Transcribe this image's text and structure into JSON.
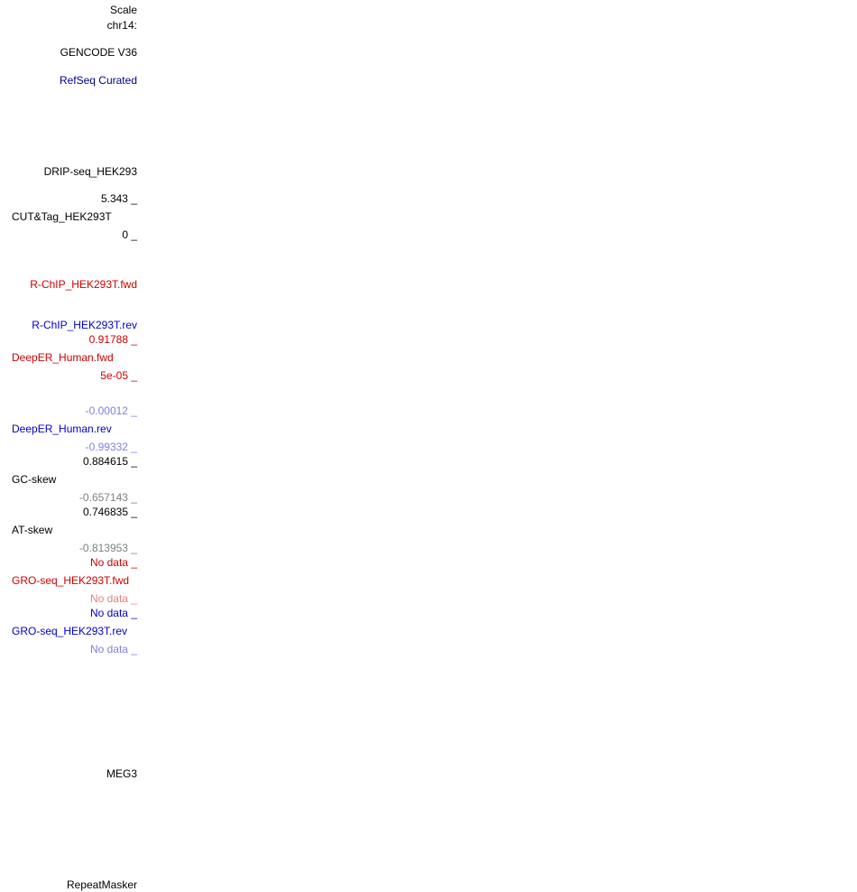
{
  "ruler": {
    "scale_label": "Scale",
    "chrom_label": "chr14:"
  },
  "tracks": {
    "gencode": {
      "label": "GENCODE V36"
    },
    "refseq": {
      "label": "RefSeq Curated"
    },
    "drip": {
      "label": "DRIP-seq_HEK293"
    },
    "cuttag": {
      "label": "CUT&Tag_HEK293T",
      "max": "5.343 _",
      "min": "0 _"
    },
    "rchip_fwd": {
      "label": "R-ChIP_HEK293T.fwd"
    },
    "rchip_rev": {
      "label": "R-ChIP_HEK293T.rev"
    },
    "deeper_fwd": {
      "label": "DeepER_Human.fwd",
      "max": "0.91788 _",
      "min": "5e-05 _"
    },
    "deeper_rev": {
      "label": "DeepER_Human.rev",
      "max": "-0.00012 _",
      "min": "-0.99332 _"
    },
    "gc_skew": {
      "label": "GC-skew",
      "max": "0.884615 _",
      "min": "-0.657143 _"
    },
    "at_skew": {
      "label": "AT-skew",
      "max": "0.746835 _",
      "min": "-0.813953 _"
    },
    "gro_fwd": {
      "label": "GRO-seq_HEK293T.fwd",
      "max": "No data _",
      "min": "No data _"
    },
    "gro_rev": {
      "label": "GRO-seq_HEK293T.rev",
      "max": "No data _",
      "min": "No data _"
    },
    "meg3": {
      "label": "MEG3"
    },
    "repeatmasker": {
      "label": "RepeatMasker"
    }
  },
  "colors": {
    "black": "#000000",
    "navy": "#00008b",
    "red": "#cc0000",
    "blue": "#0000cc",
    "light_blue": "#7f7fe5",
    "light_red": "#e57f7f",
    "gray": "#7f7f7f"
  }
}
